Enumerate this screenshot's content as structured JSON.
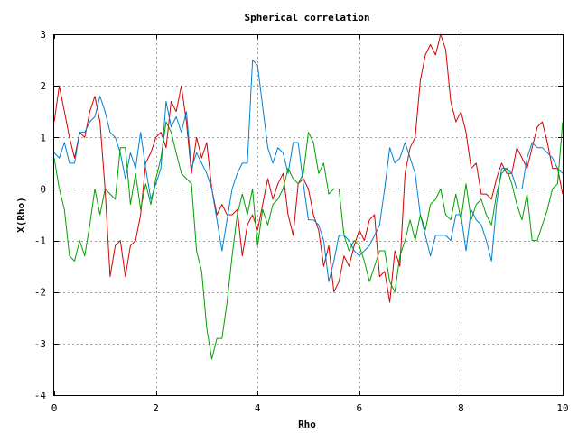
{
  "chart_data": {
    "type": "line",
    "title": "Spherical correlation",
    "xlabel": "Rho",
    "ylabel": "X(Rho)",
    "xlim": [
      0,
      10
    ],
    "ylim": [
      -4,
      3
    ],
    "x_ticks": [
      "0",
      "2",
      "4",
      "6",
      "8",
      "10"
    ],
    "y_ticks": [
      "-4",
      "-3",
      "-2",
      "-1",
      "0",
      "1",
      "2",
      "3"
    ],
    "grid": true,
    "legend": "none",
    "series": [
      {
        "color": "#d40000",
        "x": [
          0.0,
          0.1,
          0.2,
          0.3,
          0.4,
          0.5,
          0.6,
          0.7,
          0.8,
          0.9,
          1.0,
          1.1,
          1.2,
          1.3,
          1.4,
          1.5,
          1.6,
          1.7,
          1.8,
          1.9,
          2.0,
          2.1,
          2.2,
          2.3,
          2.4,
          2.5,
          2.6,
          2.7,
          2.8,
          2.9,
          3.0,
          3.1,
          3.2,
          3.3,
          3.4,
          3.5,
          3.6,
          3.7,
          3.8,
          3.9,
          4.0,
          4.1,
          4.2,
          4.3,
          4.4,
          4.5,
          4.6,
          4.7,
          4.8,
          4.9,
          5.0,
          5.1,
          5.2,
          5.3,
          5.4,
          5.5,
          5.6,
          5.7,
          5.8,
          5.9,
          6.0,
          6.1,
          6.2,
          6.3,
          6.4,
          6.5,
          6.6,
          6.7,
          6.8,
          6.9,
          7.0,
          7.1,
          7.2,
          7.3,
          7.4,
          7.5,
          7.6,
          7.7,
          7.8,
          7.9,
          8.0,
          8.1,
          8.2,
          8.3,
          8.4,
          8.5,
          8.6,
          8.7,
          8.8,
          8.9,
          9.0,
          9.1,
          9.2,
          9.3,
          9.4,
          9.5,
          9.6,
          9.7,
          9.8,
          9.9,
          10.0
        ],
        "y": [
          1.3,
          2.0,
          1.5,
          1.0,
          0.6,
          1.1,
          1.0,
          1.5,
          1.8,
          1.3,
          0.0,
          -1.7,
          -1.1,
          -1.0,
          -1.7,
          -1.1,
          -1.0,
          -0.5,
          0.5,
          0.7,
          1.0,
          1.1,
          0.8,
          1.7,
          1.5,
          2.0,
          1.3,
          0.3,
          1.0,
          0.6,
          0.9,
          0.0,
          -0.5,
          -0.3,
          -0.5,
          -0.5,
          -0.4,
          -1.3,
          -0.7,
          -0.5,
          -0.8,
          -0.3,
          0.2,
          -0.2,
          0.1,
          0.3,
          -0.5,
          -0.9,
          0.1,
          0.2,
          0.0,
          -0.5,
          -0.8,
          -1.5,
          -1.1,
          -2.0,
          -1.8,
          -1.3,
          -1.5,
          -1.1,
          -0.8,
          -1.0,
          -0.6,
          -0.5,
          -1.7,
          -1.6,
          -2.2,
          -1.2,
          -1.5,
          0.3,
          0.8,
          1.0,
          2.1,
          2.6,
          2.8,
          2.6,
          3.0,
          2.7,
          1.7,
          1.3,
          1.5,
          1.1,
          0.4,
          0.5,
          -0.1,
          -0.1,
          -0.2,
          0.2,
          0.5,
          0.3,
          0.3,
          0.8,
          0.6,
          0.4,
          0.8,
          1.2,
          1.3,
          0.9,
          0.4,
          0.4,
          -0.1
        ]
      },
      {
        "color": "#0080d4",
        "x": [
          0.0,
          0.1,
          0.2,
          0.3,
          0.4,
          0.5,
          0.6,
          0.7,
          0.8,
          0.9,
          1.0,
          1.1,
          1.2,
          1.3,
          1.4,
          1.5,
          1.6,
          1.7,
          1.8,
          1.9,
          2.0,
          2.1,
          2.2,
          2.3,
          2.4,
          2.5,
          2.6,
          2.7,
          2.8,
          2.9,
          3.0,
          3.1,
          3.2,
          3.3,
          3.4,
          3.5,
          3.6,
          3.7,
          3.8,
          3.9,
          4.0,
          4.1,
          4.2,
          4.3,
          4.4,
          4.5,
          4.6,
          4.7,
          4.8,
          4.9,
          5.0,
          5.1,
          5.2,
          5.3,
          5.4,
          5.5,
          5.6,
          5.7,
          5.8,
          5.9,
          6.0,
          6.1,
          6.2,
          6.3,
          6.4,
          6.5,
          6.6,
          6.7,
          6.8,
          6.9,
          7.0,
          7.1,
          7.2,
          7.3,
          7.4,
          7.5,
          7.6,
          7.7,
          7.8,
          7.9,
          8.0,
          8.1,
          8.2,
          8.3,
          8.4,
          8.5,
          8.6,
          8.7,
          8.8,
          8.9,
          9.0,
          9.1,
          9.2,
          9.3,
          9.4,
          9.5,
          9.6,
          9.7,
          9.8,
          9.9,
          10.0
        ],
        "y": [
          0.7,
          0.6,
          0.9,
          0.5,
          0.5,
          1.1,
          1.1,
          1.3,
          1.4,
          1.8,
          1.5,
          1.1,
          1.0,
          0.7,
          0.2,
          0.7,
          0.4,
          1.1,
          0.4,
          -0.2,
          0.1,
          0.4,
          1.7,
          1.2,
          1.4,
          1.1,
          1.5,
          0.4,
          0.7,
          0.5,
          0.3,
          0.0,
          -0.6,
          -1.2,
          -0.6,
          0.0,
          0.3,
          0.5,
          0.5,
          2.5,
          2.4,
          1.6,
          0.8,
          0.5,
          0.8,
          0.7,
          0.3,
          0.9,
          0.9,
          0.1,
          -0.6,
          -0.6,
          -0.7,
          -1.0,
          -1.8,
          -1.4,
          -0.9,
          -0.9,
          -1.0,
          -1.2,
          -1.3,
          -1.2,
          -1.1,
          -0.9,
          -0.7,
          0.0,
          0.8,
          0.5,
          0.6,
          0.9,
          0.6,
          0.3,
          -0.5,
          -0.9,
          -1.3,
          -0.9,
          -0.9,
          -0.9,
          -1.0,
          -0.5,
          -0.5,
          -1.2,
          -0.4,
          -0.6,
          -0.7,
          -1.0,
          -1.4,
          -0.3,
          0.4,
          0.4,
          0.3,
          0.0,
          0.0,
          0.6,
          0.9,
          0.8,
          0.8,
          0.7,
          0.6,
          0.4,
          0.3
        ]
      },
      {
        "color": "#00a000",
        "x": [
          0.0,
          0.1,
          0.2,
          0.3,
          0.4,
          0.5,
          0.6,
          0.7,
          0.8,
          0.9,
          1.0,
          1.1,
          1.2,
          1.3,
          1.4,
          1.5,
          1.6,
          1.7,
          1.8,
          1.9,
          2.0,
          2.1,
          2.2,
          2.3,
          2.4,
          2.5,
          2.6,
          2.7,
          2.8,
          2.9,
          3.0,
          3.1,
          3.2,
          3.3,
          3.4,
          3.5,
          3.6,
          3.7,
          3.8,
          3.9,
          4.0,
          4.1,
          4.2,
          4.3,
          4.4,
          4.5,
          4.6,
          4.7,
          4.8,
          4.9,
          5.0,
          5.1,
          5.2,
          5.3,
          5.4,
          5.5,
          5.6,
          5.7,
          5.8,
          5.9,
          6.0,
          6.1,
          6.2,
          6.3,
          6.4,
          6.5,
          6.6,
          6.7,
          6.8,
          6.9,
          7.0,
          7.1,
          7.2,
          7.3,
          7.4,
          7.5,
          7.6,
          7.7,
          7.8,
          7.9,
          8.0,
          8.1,
          8.2,
          8.3,
          8.4,
          8.5,
          8.6,
          8.7,
          8.8,
          8.9,
          9.0,
          9.1,
          9.2,
          9.3,
          9.4,
          9.5,
          9.6,
          9.7,
          9.8,
          9.9,
          10.0
        ],
        "y": [
          0.6,
          0.0,
          -0.4,
          -1.3,
          -1.4,
          -1.0,
          -1.3,
          -0.7,
          0.0,
          -0.5,
          0.0,
          -0.1,
          -0.2,
          0.8,
          0.8,
          -0.3,
          0.3,
          -0.4,
          0.1,
          -0.3,
          0.2,
          0.6,
          1.3,
          1.1,
          0.7,
          0.3,
          0.2,
          0.1,
          -1.2,
          -1.6,
          -2.7,
          -3.3,
          -2.9,
          -2.9,
          -2.2,
          -1.3,
          -0.5,
          -0.1,
          -0.5,
          0.0,
          -1.1,
          -0.4,
          -0.7,
          -0.3,
          -0.2,
          0.0,
          0.4,
          0.2,
          0.1,
          0.3,
          1.1,
          0.9,
          0.3,
          0.5,
          -0.1,
          0.0,
          0.0,
          -0.9,
          -1.2,
          -1.0,
          -1.1,
          -1.4,
          -1.8,
          -1.5,
          -1.2,
          -1.2,
          -1.8,
          -2.0,
          -1.3,
          -1.0,
          -0.6,
          -1.0,
          -0.5,
          -0.8,
          -0.3,
          -0.2,
          0.0,
          -0.5,
          -0.6,
          -0.1,
          -0.6,
          0.1,
          -0.6,
          -0.3,
          -0.2,
          -0.5,
          -0.7,
          -0.1,
          0.3,
          0.4,
          0.1,
          -0.3,
          -0.6,
          -0.1,
          -1.0,
          -1.0,
          -0.7,
          -0.4,
          0.0,
          0.1,
          1.3
        ]
      }
    ]
  }
}
